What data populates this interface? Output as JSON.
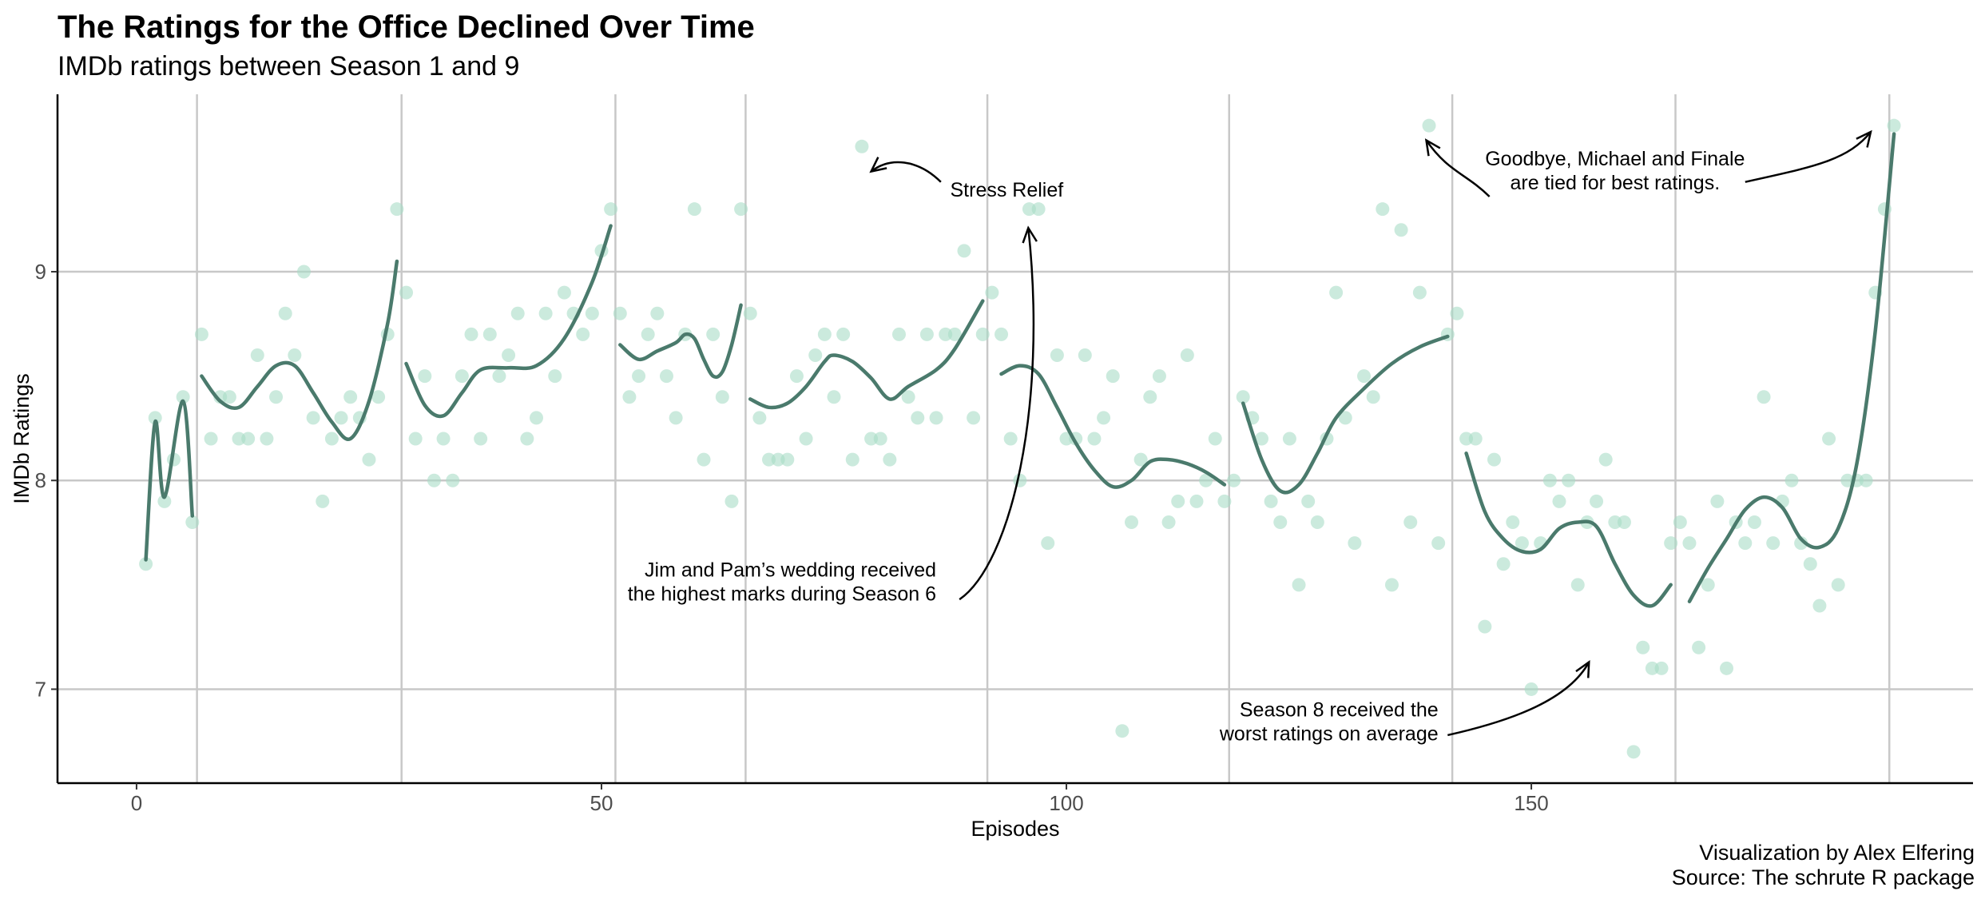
{
  "title": "The Ratings for the Office Declined Over Time",
  "subtitle": "IMDb ratings between Season 1 and 9",
  "caption_line1": "Visualization by Alex Elfering",
  "caption_line2": "Source: The schrute R package",
  "colors": {
    "point": "#a8dcc6",
    "line": "#4a7a6c",
    "grid": "#c8c8c8",
    "axis": "#000000"
  },
  "chart_data": {
    "type": "scatter",
    "xlabel": "Episodes",
    "ylabel": "IMDb Ratings",
    "xlim": [
      -8.5,
      197.5
    ],
    "ylim": [
      6.55,
      9.85
    ],
    "x_ticks": [
      0,
      50,
      100,
      150
    ],
    "y_ticks": [
      7,
      8,
      9
    ],
    "season_boundaries": [
      6.5,
      28.5,
      51.5,
      65.5,
      91.5,
      117.5,
      141.5,
      165.5,
      188.5
    ],
    "points": [
      [
        1,
        7.6
      ],
      [
        2,
        8.3
      ],
      [
        3,
        7.9
      ],
      [
        4,
        8.1
      ],
      [
        5,
        8.4
      ],
      [
        6,
        7.8
      ],
      [
        7,
        8.7
      ],
      [
        8,
        8.2
      ],
      [
        9,
        8.4
      ],
      [
        10,
        8.4
      ],
      [
        11,
        8.2
      ],
      [
        12,
        8.2
      ],
      [
        13,
        8.6
      ],
      [
        14,
        8.2
      ],
      [
        15,
        8.4
      ],
      [
        16,
        8.8
      ],
      [
        17,
        8.6
      ],
      [
        18,
        9.0
      ],
      [
        19,
        8.3
      ],
      [
        20,
        7.9
      ],
      [
        21,
        8.2
      ],
      [
        22,
        8.3
      ],
      [
        23,
        8.4
      ],
      [
        24,
        8.3
      ],
      [
        25,
        8.1
      ],
      [
        26,
        8.4
      ],
      [
        27,
        8.7
      ],
      [
        28,
        9.3
      ],
      [
        29,
        8.9
      ],
      [
        30,
        8.2
      ],
      [
        31,
        8.5
      ],
      [
        32,
        8.0
      ],
      [
        33,
        8.2
      ],
      [
        34,
        8.0
      ],
      [
        35,
        8.5
      ],
      [
        36,
        8.7
      ],
      [
        37,
        8.2
      ],
      [
        38,
        8.7
      ],
      [
        39,
        8.5
      ],
      [
        40,
        8.6
      ],
      [
        41,
        8.8
      ],
      [
        42,
        8.2
      ],
      [
        43,
        8.3
      ],
      [
        44,
        8.8
      ],
      [
        45,
        8.5
      ],
      [
        46,
        8.9
      ],
      [
        47,
        8.8
      ],
      [
        48,
        8.7
      ],
      [
        49,
        8.8
      ],
      [
        50,
        9.1
      ],
      [
        51,
        9.3
      ],
      [
        52,
        8.8
      ],
      [
        53,
        8.4
      ],
      [
        54,
        8.5
      ],
      [
        55,
        8.7
      ],
      [
        56,
        8.8
      ],
      [
        57,
        8.5
      ],
      [
        58,
        8.3
      ],
      [
        59,
        8.7
      ],
      [
        60,
        9.3
      ],
      [
        61,
        8.1
      ],
      [
        62,
        8.7
      ],
      [
        63,
        8.4
      ],
      [
        64,
        7.9
      ],
      [
        65,
        9.3
      ],
      [
        66,
        8.8
      ],
      [
        67,
        8.3
      ],
      [
        68,
        8.1
      ],
      [
        69,
        8.1
      ],
      [
        70,
        8.1
      ],
      [
        71,
        8.5
      ],
      [
        72,
        8.2
      ],
      [
        73,
        8.6
      ],
      [
        74,
        8.7
      ],
      [
        75,
        8.4
      ],
      [
        76,
        8.7
      ],
      [
        77,
        8.1
      ],
      [
        78,
        9.6
      ],
      [
        79,
        8.2
      ],
      [
        80,
        8.2
      ],
      [
        81,
        8.1
      ],
      [
        82,
        8.7
      ],
      [
        83,
        8.4
      ],
      [
        84,
        8.3
      ],
      [
        85,
        8.7
      ],
      [
        86,
        8.3
      ],
      [
        87,
        8.7
      ],
      [
        88,
        8.7
      ],
      [
        89,
        9.1
      ],
      [
        90,
        8.3
      ],
      [
        91,
        8.7
      ],
      [
        92,
        8.9
      ],
      [
        93,
        8.7
      ],
      [
        94,
        8.2
      ],
      [
        95,
        8.0
      ],
      [
        96,
        9.3
      ],
      [
        97,
        9.3
      ],
      [
        98,
        7.7
      ],
      [
        99,
        8.6
      ],
      [
        100,
        8.2
      ],
      [
        101,
        8.2
      ],
      [
        102,
        8.6
      ],
      [
        103,
        8.2
      ],
      [
        104,
        8.3
      ],
      [
        105,
        8.5
      ],
      [
        106,
        6.8
      ],
      [
        107,
        7.8
      ],
      [
        108,
        8.1
      ],
      [
        109,
        8.4
      ],
      [
        110,
        8.5
      ],
      [
        111,
        7.8
      ],
      [
        112,
        7.9
      ],
      [
        113,
        8.6
      ],
      [
        114,
        7.9
      ],
      [
        115,
        8.0
      ],
      [
        116,
        8.2
      ],
      [
        117,
        7.9
      ],
      [
        118,
        8.0
      ],
      [
        119,
        8.4
      ],
      [
        120,
        8.3
      ],
      [
        121,
        8.2
      ],
      [
        122,
        7.9
      ],
      [
        123,
        7.8
      ],
      [
        124,
        8.2
      ],
      [
        125,
        7.5
      ],
      [
        126,
        7.9
      ],
      [
        127,
        7.8
      ],
      [
        128,
        8.2
      ],
      [
        129,
        8.9
      ],
      [
        130,
        8.3
      ],
      [
        131,
        7.7
      ],
      [
        132,
        8.5
      ],
      [
        133,
        8.4
      ],
      [
        134,
        9.3
      ],
      [
        135,
        7.5
      ],
      [
        136,
        9.2
      ],
      [
        137,
        7.8
      ],
      [
        138,
        8.9
      ],
      [
        139,
        9.7
      ],
      [
        140,
        7.7
      ],
      [
        141,
        8.7
      ],
      [
        142,
        8.8
      ],
      [
        143,
        8.2
      ],
      [
        144,
        8.2
      ],
      [
        145,
        7.3
      ],
      [
        146,
        8.1
      ],
      [
        147,
        7.6
      ],
      [
        148,
        7.8
      ],
      [
        149,
        7.7
      ],
      [
        150,
        7.0
      ],
      [
        151,
        7.7
      ],
      [
        152,
        8.0
      ],
      [
        153,
        7.9
      ],
      [
        154,
        8.0
      ],
      [
        155,
        7.5
      ],
      [
        156,
        7.8
      ],
      [
        157,
        7.9
      ],
      [
        158,
        8.1
      ],
      [
        159,
        7.8
      ],
      [
        160,
        7.8
      ],
      [
        161,
        6.7
      ],
      [
        162,
        7.2
      ],
      [
        163,
        7.1
      ],
      [
        164,
        7.1
      ],
      [
        165,
        7.7
      ],
      [
        166,
        7.8
      ],
      [
        167,
        7.7
      ],
      [
        168,
        7.2
      ],
      [
        169,
        7.5
      ],
      [
        170,
        7.9
      ],
      [
        171,
        7.1
      ],
      [
        172,
        7.8
      ],
      [
        173,
        7.7
      ],
      [
        174,
        7.8
      ],
      [
        175,
        8.4
      ],
      [
        176,
        7.7
      ],
      [
        177,
        7.9
      ],
      [
        178,
        8.0
      ],
      [
        179,
        7.7
      ],
      [
        180,
        7.6
      ],
      [
        181,
        7.4
      ],
      [
        182,
        8.2
      ],
      [
        183,
        7.5
      ],
      [
        184,
        8.0
      ],
      [
        185,
        8.0
      ],
      [
        186,
        8.0
      ],
      [
        187,
        8.9
      ],
      [
        188,
        9.3
      ],
      [
        189,
        9.7
      ]
    ],
    "season_trends": [
      [
        [
          1,
          7.62
        ],
        [
          2,
          8.28
        ],
        [
          3,
          7.92
        ],
        [
          5,
          8.38
        ],
        [
          6,
          7.83
        ]
      ],
      [
        [
          7,
          8.5
        ],
        [
          9,
          8.38
        ],
        [
          11,
          8.35
        ],
        [
          13,
          8.45
        ],
        [
          15,
          8.55
        ],
        [
          17,
          8.55
        ],
        [
          19,
          8.42
        ],
        [
          21,
          8.28
        ],
        [
          23,
          8.2
        ],
        [
          25,
          8.38
        ],
        [
          27,
          8.75
        ],
        [
          28,
          9.05
        ]
      ],
      [
        [
          29,
          8.56
        ],
        [
          31,
          8.36
        ],
        [
          33,
          8.31
        ],
        [
          35,
          8.42
        ],
        [
          37,
          8.53
        ],
        [
          40,
          8.54
        ],
        [
          43,
          8.55
        ],
        [
          46,
          8.68
        ],
        [
          49,
          8.95
        ],
        [
          51,
          9.22
        ]
      ],
      [
        [
          52,
          8.65
        ],
        [
          54,
          8.58
        ],
        [
          56,
          8.62
        ],
        [
          58,
          8.66
        ],
        [
          59,
          8.7
        ],
        [
          60,
          8.68
        ],
        [
          61,
          8.58
        ],
        [
          62,
          8.5
        ],
        [
          63,
          8.52
        ],
        [
          64,
          8.65
        ],
        [
          65,
          8.84
        ]
      ],
      [
        [
          66,
          8.39
        ],
        [
          68,
          8.35
        ],
        [
          70,
          8.37
        ],
        [
          72,
          8.45
        ],
        [
          74,
          8.57
        ],
        [
          75,
          8.6
        ],
        [
          77,
          8.57
        ],
        [
          79,
          8.49
        ],
        [
          81,
          8.39
        ],
        [
          83,
          8.45
        ],
        [
          86,
          8.53
        ],
        [
          88,
          8.63
        ],
        [
          91,
          8.86
        ]
      ],
      [
        [
          93,
          8.51
        ],
        [
          95,
          8.55
        ],
        [
          97,
          8.51
        ],
        [
          99,
          8.35
        ],
        [
          101,
          8.18
        ],
        [
          103,
          8.05
        ],
        [
          105,
          7.97
        ],
        [
          107,
          8.0
        ],
        [
          109,
          8.09
        ],
        [
          111,
          8.1
        ],
        [
          113,
          8.08
        ],
        [
          115,
          8.04
        ],
        [
          117,
          7.98
        ]
      ],
      [
        [
          119,
          8.37
        ],
        [
          121,
          8.1
        ],
        [
          123,
          7.95
        ],
        [
          125,
          7.98
        ],
        [
          127,
          8.13
        ],
        [
          129,
          8.3
        ],
        [
          132,
          8.44
        ],
        [
          135,
          8.56
        ],
        [
          138,
          8.64
        ],
        [
          141,
          8.69
        ]
      ],
      [
        [
          143,
          8.13
        ],
        [
          145,
          7.85
        ],
        [
          147,
          7.72
        ],
        [
          149,
          7.66
        ],
        [
          151,
          7.67
        ],
        [
          153,
          7.77
        ],
        [
          155,
          7.8
        ],
        [
          157,
          7.78
        ],
        [
          159,
          7.6
        ],
        [
          161,
          7.45
        ],
        [
          163,
          7.4
        ],
        [
          165,
          7.5
        ]
      ],
      [
        [
          167,
          7.42
        ],
        [
          169,
          7.58
        ],
        [
          171,
          7.72
        ],
        [
          173,
          7.86
        ],
        [
          175,
          7.92
        ],
        [
          177,
          7.87
        ],
        [
          179,
          7.72
        ],
        [
          181,
          7.68
        ],
        [
          183,
          7.77
        ],
        [
          185,
          8.08
        ],
        [
          187,
          8.72
        ],
        [
          189,
          9.66
        ]
      ]
    ],
    "annotations": [
      {
        "lines": [
          "Stress Relief"
        ],
        "anchor": "start",
        "x": 87.5,
        "y": 9.36,
        "arrow": [
          [
            86.5,
            9.43
          ],
          [
            84,
            9.54
          ],
          [
            81,
            9.55
          ],
          [
            79,
            9.48
          ]
        ]
      },
      {
        "lines": [
          "Goodbye, Michael and Finale",
          "are tied for best ratings."
        ],
        "anchor": "middle",
        "x": 159,
        "y": 9.51,
        "arrow": [
          [
            145.5,
            9.36
          ],
          [
            143,
            9.47
          ],
          [
            141,
            9.48
          ],
          [
            138.7,
            9.63
          ]
        ],
        "arrow2": [
          [
            173,
            9.43
          ],
          [
            180,
            9.5
          ],
          [
            184,
            9.53
          ],
          [
            186.5,
            9.67
          ]
        ]
      },
      {
        "lines": [
          "Jim and Pam’s wedding received",
          "the highest marks during Season 6"
        ],
        "anchor": "end",
        "x": 86,
        "y": 7.54,
        "arrow": [
          [
            88.5,
            7.43
          ],
          [
            94,
            7.6
          ],
          [
            98,
            8.35
          ],
          [
            95.9,
            9.21
          ]
        ]
      },
      {
        "lines": [
          "Season 8 received the",
          "worst ratings on average"
        ],
        "anchor": "end",
        "x": 140,
        "y": 6.87,
        "arrow": [
          [
            141,
            6.78
          ],
          [
            148,
            6.85
          ],
          [
            154,
            6.95
          ],
          [
            156.2,
            7.13
          ]
        ]
      }
    ]
  }
}
